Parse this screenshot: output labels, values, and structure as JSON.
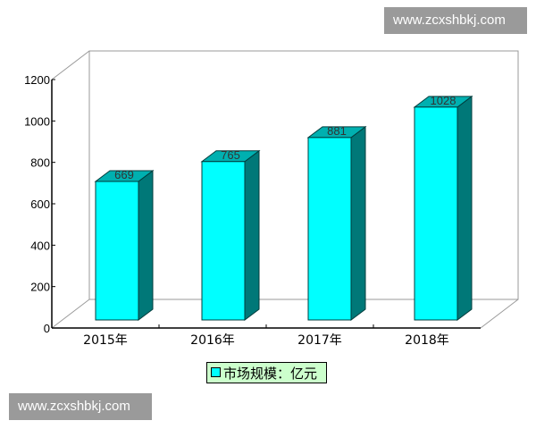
{
  "watermark": "www.zcxshbkj.com",
  "chart_data": {
    "type": "bar",
    "style": "3d",
    "categories": [
      "2015年",
      "2016年",
      "2017年",
      "2018年"
    ],
    "series": [
      {
        "name": "市场规模：亿元",
        "values": [
          669,
          765,
          881,
          1028
        ]
      }
    ],
    "data_labels": [
      "669",
      "765",
      "881",
      "1028"
    ],
    "yticks": [
      "0",
      "200",
      "400",
      "600",
      "800",
      "1000",
      "1200"
    ],
    "ylim": [
      0,
      1200
    ],
    "grid": false,
    "legend": "bottom",
    "colors": {
      "bar_front": "#00ffff",
      "bar_top": "#00b0b0",
      "bar_side": "#007878",
      "legend_bg": "#ccffcc"
    }
  }
}
